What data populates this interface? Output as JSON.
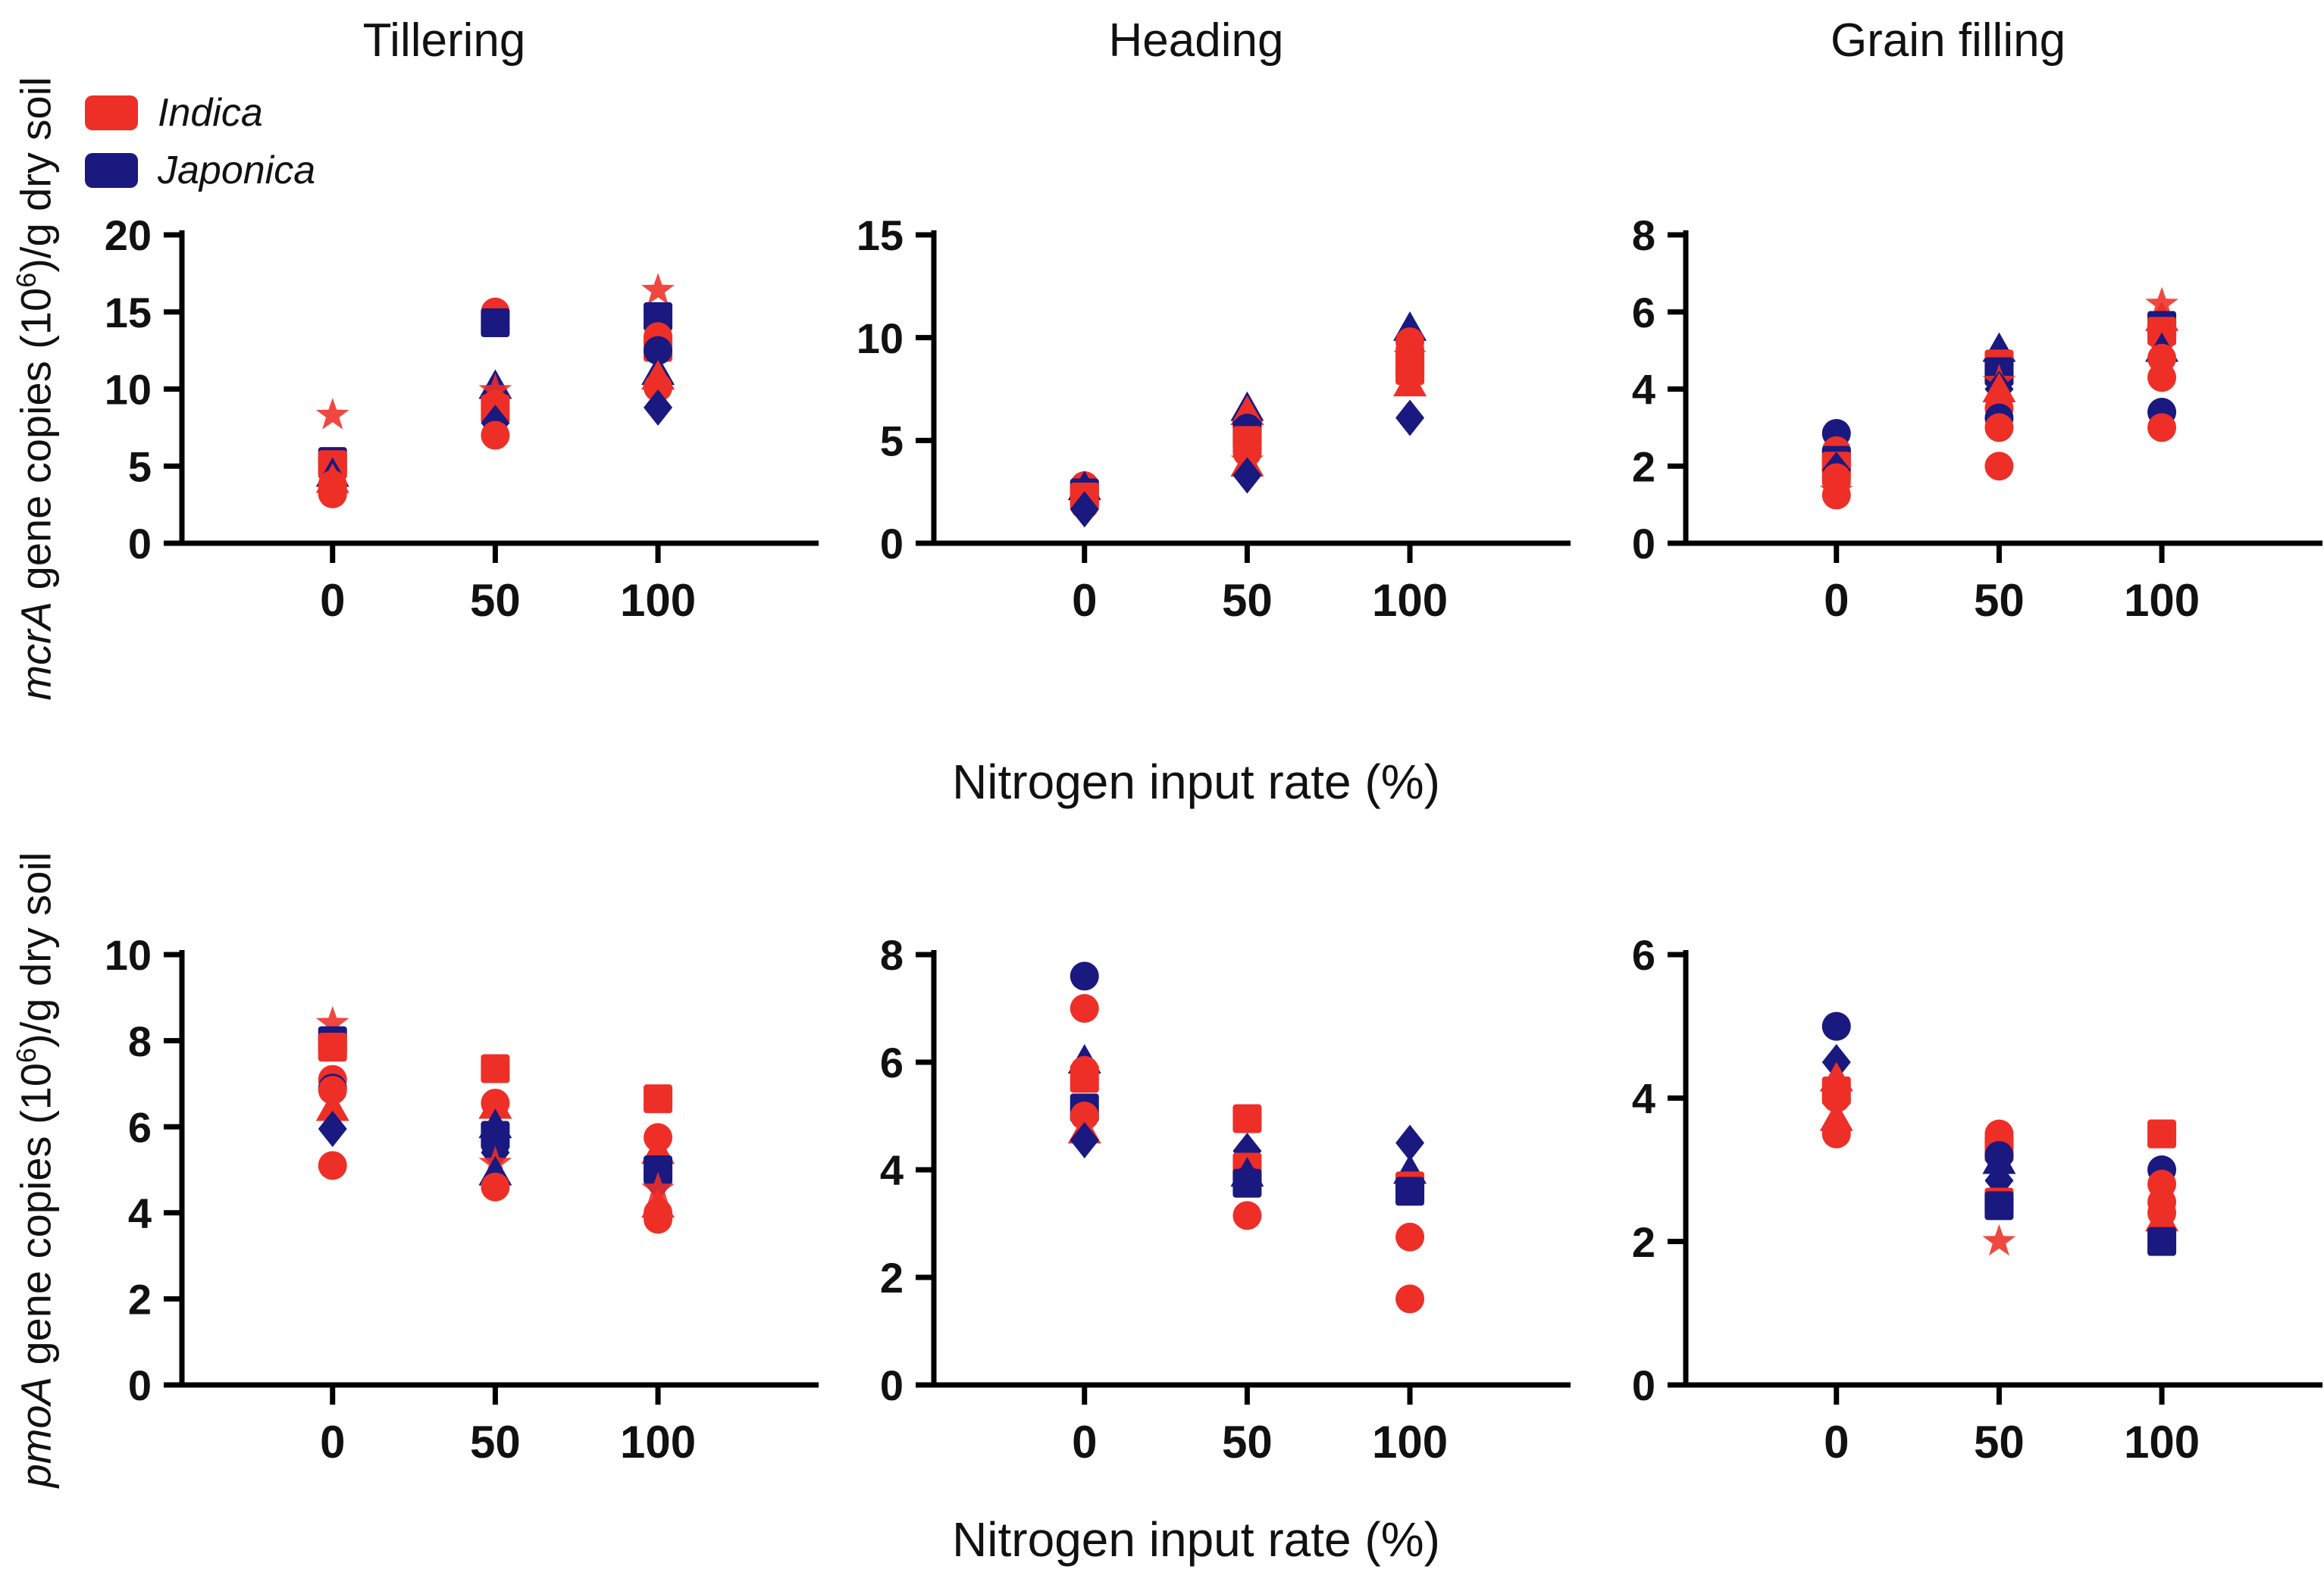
{
  "colors": {
    "indica": "#ee2f27",
    "japonica": "#191980",
    "axis": "#000000"
  },
  "legend": {
    "items": [
      {
        "label": "Indica",
        "color_key": "indica"
      },
      {
        "label": "Japonica",
        "color_key": "japonica"
      }
    ]
  },
  "col_titles": [
    "Tillering",
    "Heading",
    "Grain filling"
  ],
  "xlabel": "Nitrogen input rate (%)",
  "ylabels": {
    "row1": {
      "gene": "mcrA",
      "text_pre": " gene copies (10",
      "sup": "6",
      "text_post": ")/g dry soil"
    },
    "row2": {
      "gene": "pmoA",
      "text_pre": " gene copies (10",
      "sup": "6",
      "text_post": ")/g dry soil"
    }
  },
  "chart_data": [
    {
      "type": "scatter",
      "title": "Tillering",
      "gene": "mcrA",
      "xlabel": "Nitrogen input rate (%)",
      "xticks": [
        0,
        50,
        100
      ],
      "ylim": [
        0,
        20
      ],
      "yticks": [
        0,
        5,
        10,
        15,
        20
      ],
      "points": [
        {
          "x": 0,
          "y": 8.3,
          "m": "star",
          "v": "indica"
        },
        {
          "x": 0,
          "y": 5.3,
          "m": "square",
          "v": "japonica"
        },
        {
          "x": 0,
          "y": 5.1,
          "m": "square",
          "v": "indica"
        },
        {
          "x": 0,
          "y": 4.4,
          "m": "triangle",
          "v": "japonica"
        },
        {
          "x": 0,
          "y": 4.0,
          "m": "triangle",
          "v": "indica"
        },
        {
          "x": 0,
          "y": 3.8,
          "m": "circle",
          "v": "indica"
        },
        {
          "x": 0,
          "y": 3.5,
          "m": "circle",
          "v": "indica"
        },
        {
          "x": 0,
          "y": 3.2,
          "m": "circle",
          "v": "indica"
        },
        {
          "x": 50,
          "y": 15.0,
          "m": "circle",
          "v": "indica"
        },
        {
          "x": 50,
          "y": 14.3,
          "m": "square",
          "v": "japonica"
        },
        {
          "x": 50,
          "y": 10.1,
          "m": "triangle",
          "v": "japonica"
        },
        {
          "x": 50,
          "y": 9.9,
          "m": "star",
          "v": "indica"
        },
        {
          "x": 50,
          "y": 9.0,
          "m": "circle",
          "v": "indica"
        },
        {
          "x": 50,
          "y": 8.7,
          "m": "square",
          "v": "indica"
        },
        {
          "x": 50,
          "y": 8.4,
          "m": "circle",
          "v": "indica"
        },
        {
          "x": 50,
          "y": 7.8,
          "m": "diamond",
          "v": "japonica"
        },
        {
          "x": 50,
          "y": 7.0,
          "m": "circle",
          "v": "indica"
        },
        {
          "x": 100,
          "y": 16.4,
          "m": "star",
          "v": "indica"
        },
        {
          "x": 100,
          "y": 14.7,
          "m": "square",
          "v": "japonica"
        },
        {
          "x": 100,
          "y": 13.4,
          "m": "circle",
          "v": "indica"
        },
        {
          "x": 100,
          "y": 13.0,
          "m": "circle",
          "v": "indica"
        },
        {
          "x": 100,
          "y": 12.7,
          "m": "square",
          "v": "indica"
        },
        {
          "x": 100,
          "y": 12.5,
          "m": "circle",
          "v": "japonica"
        },
        {
          "x": 100,
          "y": 11.0,
          "m": "triangle",
          "v": "japonica"
        },
        {
          "x": 100,
          "y": 10.7,
          "m": "triangle",
          "v": "indica"
        },
        {
          "x": 100,
          "y": 10.1,
          "m": "circle",
          "v": "indica"
        },
        {
          "x": 100,
          "y": 8.8,
          "m": "diamond",
          "v": "japonica"
        }
      ]
    },
    {
      "type": "scatter",
      "title": "Heading",
      "gene": "mcrA",
      "xlabel": "Nitrogen input rate (%)",
      "xticks": [
        0,
        50,
        100
      ],
      "ylim": [
        0,
        15
      ],
      "yticks": [
        0,
        5,
        10,
        15
      ],
      "points": [
        {
          "x": 0,
          "y": 2.8,
          "m": "circle",
          "v": "indica"
        },
        {
          "x": 0,
          "y": 2.65,
          "m": "triangle",
          "v": "japonica"
        },
        {
          "x": 0,
          "y": 2.45,
          "m": "square",
          "v": "japonica"
        },
        {
          "x": 0,
          "y": 2.25,
          "m": "square",
          "v": "indica"
        },
        {
          "x": 0,
          "y": 2.0,
          "m": "circle",
          "v": "indica"
        },
        {
          "x": 0,
          "y": 1.85,
          "m": "circle",
          "v": "indica"
        },
        {
          "x": 0,
          "y": 1.65,
          "m": "diamond",
          "v": "japonica"
        },
        {
          "x": 50,
          "y": 6.5,
          "m": "triangle",
          "v": "japonica"
        },
        {
          "x": 50,
          "y": 6.3,
          "m": "triangle",
          "v": "indica"
        },
        {
          "x": 50,
          "y": 5.6,
          "m": "circle",
          "v": "japonica"
        },
        {
          "x": 50,
          "y": 5.3,
          "m": "square",
          "v": "japonica"
        },
        {
          "x": 50,
          "y": 5.0,
          "m": "square",
          "v": "indica"
        },
        {
          "x": 50,
          "y": 4.7,
          "m": "circle",
          "v": "indica"
        },
        {
          "x": 50,
          "y": 4.4,
          "m": "circle",
          "v": "indica"
        },
        {
          "x": 50,
          "y": 4.0,
          "m": "star",
          "v": "indica"
        },
        {
          "x": 50,
          "y": 3.8,
          "m": "triangle",
          "v": "indica"
        },
        {
          "x": 50,
          "y": 3.3,
          "m": "diamond",
          "v": "japonica"
        },
        {
          "x": 100,
          "y": 10.4,
          "m": "triangle",
          "v": "japonica"
        },
        {
          "x": 100,
          "y": 9.8,
          "m": "circle",
          "v": "indica"
        },
        {
          "x": 100,
          "y": 9.4,
          "m": "circle",
          "v": "indica"
        },
        {
          "x": 100,
          "y": 9.1,
          "m": "star",
          "v": "indica"
        },
        {
          "x": 100,
          "y": 8.7,
          "m": "square",
          "v": "indica"
        },
        {
          "x": 100,
          "y": 8.4,
          "m": "square",
          "v": "indica"
        },
        {
          "x": 100,
          "y": 7.7,
          "m": "triangle",
          "v": "indica"
        },
        {
          "x": 100,
          "y": 6.1,
          "m": "diamond",
          "v": "japonica"
        }
      ]
    },
    {
      "type": "scatter",
      "title": "Grain filling",
      "gene": "mcrA",
      "xlabel": "Nitrogen input rate (%)",
      "xticks": [
        0,
        50,
        100
      ],
      "ylim": [
        0,
        8
      ],
      "yticks": [
        0,
        2,
        4,
        6,
        8
      ],
      "points": [
        {
          "x": 0,
          "y": 2.85,
          "m": "circle",
          "v": "japonica"
        },
        {
          "x": 0,
          "y": 2.4,
          "m": "circle",
          "v": "indica"
        },
        {
          "x": 0,
          "y": 2.15,
          "m": "square",
          "v": "japonica"
        },
        {
          "x": 0,
          "y": 2.0,
          "m": "square",
          "v": "indica"
        },
        {
          "x": 0,
          "y": 1.9,
          "m": "diamond",
          "v": "japonica"
        },
        {
          "x": 0,
          "y": 1.7,
          "m": "circle",
          "v": "indica"
        },
        {
          "x": 0,
          "y": 1.6,
          "m": "circle",
          "v": "indica"
        },
        {
          "x": 0,
          "y": 1.35,
          "m": "star",
          "v": "indica"
        },
        {
          "x": 0,
          "y": 1.25,
          "m": "circle",
          "v": "indica"
        },
        {
          "x": 50,
          "y": 5.0,
          "m": "triangle",
          "v": "japonica"
        },
        {
          "x": 50,
          "y": 4.65,
          "m": "square",
          "v": "indica"
        },
        {
          "x": 50,
          "y": 4.45,
          "m": "square",
          "v": "japonica"
        },
        {
          "x": 50,
          "y": 4.2,
          "m": "star",
          "v": "indica"
        },
        {
          "x": 50,
          "y": 4.0,
          "m": "diamond",
          "v": "japonica"
        },
        {
          "x": 50,
          "y": 3.95,
          "m": "triangle",
          "v": "indica"
        },
        {
          "x": 50,
          "y": 3.5,
          "m": "circle",
          "v": "indica"
        },
        {
          "x": 50,
          "y": 3.25,
          "m": "circle",
          "v": "japonica"
        },
        {
          "x": 50,
          "y": 3.0,
          "m": "circle",
          "v": "indica"
        },
        {
          "x": 50,
          "y": 2.0,
          "m": "circle",
          "v": "indica"
        },
        {
          "x": 100,
          "y": 6.2,
          "m": "star",
          "v": "indica"
        },
        {
          "x": 100,
          "y": 5.8,
          "m": "triangle",
          "v": "indica"
        },
        {
          "x": 100,
          "y": 5.65,
          "m": "square",
          "v": "japonica"
        },
        {
          "x": 100,
          "y": 5.5,
          "m": "square",
          "v": "indica"
        },
        {
          "x": 100,
          "y": 5.35,
          "m": "circle",
          "v": "indica"
        },
        {
          "x": 100,
          "y": 5.0,
          "m": "triangle",
          "v": "japonica"
        },
        {
          "x": 100,
          "y": 4.8,
          "m": "circle",
          "v": "indica"
        },
        {
          "x": 100,
          "y": 4.3,
          "m": "circle",
          "v": "indica"
        },
        {
          "x": 100,
          "y": 3.4,
          "m": "circle",
          "v": "japonica"
        },
        {
          "x": 100,
          "y": 3.0,
          "m": "circle",
          "v": "indica"
        }
      ]
    },
    {
      "type": "scatter",
      "title": "Tillering",
      "gene": "pmoA",
      "xlabel": "Nitrogen input rate (%)",
      "xticks": [
        0,
        50,
        100
      ],
      "ylim": [
        0,
        10
      ],
      "yticks": [
        0,
        2,
        4,
        6,
        8,
        10
      ],
      "points": [
        {
          "x": 0,
          "y": 8.4,
          "m": "star",
          "v": "indica"
        },
        {
          "x": 0,
          "y": 8.0,
          "m": "square",
          "v": "japonica"
        },
        {
          "x": 0,
          "y": 7.85,
          "m": "square",
          "v": "indica"
        },
        {
          "x": 0,
          "y": 7.1,
          "m": "circle",
          "v": "indica"
        },
        {
          "x": 0,
          "y": 6.9,
          "m": "circle",
          "v": "japonica"
        },
        {
          "x": 0,
          "y": 6.85,
          "m": "circle",
          "v": "indica"
        },
        {
          "x": 0,
          "y": 6.4,
          "m": "triangle",
          "v": "indica"
        },
        {
          "x": 0,
          "y": 5.95,
          "m": "diamond",
          "v": "japonica"
        },
        {
          "x": 0,
          "y": 5.1,
          "m": "circle",
          "v": "indica"
        },
        {
          "x": 50,
          "y": 7.35,
          "m": "square",
          "v": "indica"
        },
        {
          "x": 50,
          "y": 6.55,
          "m": "circle",
          "v": "indica"
        },
        {
          "x": 50,
          "y": 6.45,
          "m": "triangle",
          "v": "indica"
        },
        {
          "x": 50,
          "y": 6.0,
          "m": "triangle",
          "v": "japonica"
        },
        {
          "x": 50,
          "y": 5.8,
          "m": "square",
          "v": "japonica"
        },
        {
          "x": 50,
          "y": 5.6,
          "m": "circle",
          "v": "japonica"
        },
        {
          "x": 50,
          "y": 5.4,
          "m": "diamond",
          "v": "japonica"
        },
        {
          "x": 50,
          "y": 5.15,
          "m": "star",
          "v": "indica"
        },
        {
          "x": 50,
          "y": 4.9,
          "m": "triangle",
          "v": "japonica"
        },
        {
          "x": 50,
          "y": 4.6,
          "m": "circle",
          "v": "indica"
        },
        {
          "x": 100,
          "y": 6.65,
          "m": "square",
          "v": "indica"
        },
        {
          "x": 100,
          "y": 5.75,
          "m": "circle",
          "v": "indica"
        },
        {
          "x": 100,
          "y": 5.4,
          "m": "triangle",
          "v": "indica"
        },
        {
          "x": 100,
          "y": 5.0,
          "m": "square",
          "v": "japonica"
        },
        {
          "x": 100,
          "y": 4.85,
          "m": "circle",
          "v": "japonica"
        },
        {
          "x": 100,
          "y": 4.7,
          "m": "diamond",
          "v": "japonica"
        },
        {
          "x": 100,
          "y": 4.55,
          "m": "star",
          "v": "indica"
        },
        {
          "x": 100,
          "y": 4.15,
          "m": "triangle",
          "v": "indica"
        },
        {
          "x": 100,
          "y": 4.0,
          "m": "circle",
          "v": "indica"
        },
        {
          "x": 100,
          "y": 3.85,
          "m": "circle",
          "v": "indica"
        }
      ]
    },
    {
      "type": "scatter",
      "title": "Heading",
      "gene": "pmoA",
      "xlabel": "Nitrogen input rate (%)",
      "xticks": [
        0,
        50,
        100
      ],
      "ylim": [
        0,
        8
      ],
      "yticks": [
        0,
        2,
        4,
        6,
        8
      ],
      "points": [
        {
          "x": 0,
          "y": 7.6,
          "m": "circle",
          "v": "japonica"
        },
        {
          "x": 0,
          "y": 7.0,
          "m": "circle",
          "v": "indica"
        },
        {
          "x": 0,
          "y": 6.0,
          "m": "triangle",
          "v": "japonica"
        },
        {
          "x": 0,
          "y": 5.85,
          "m": "circle",
          "v": "indica"
        },
        {
          "x": 0,
          "y": 5.7,
          "m": "square",
          "v": "indica"
        },
        {
          "x": 0,
          "y": 5.15,
          "m": "square",
          "v": "japonica"
        },
        {
          "x": 0,
          "y": 5.0,
          "m": "circle",
          "v": "indica"
        },
        {
          "x": 0,
          "y": 4.7,
          "m": "triangle",
          "v": "indica"
        },
        {
          "x": 0,
          "y": 4.55,
          "m": "diamond",
          "v": "japonica"
        },
        {
          "x": 50,
          "y": 4.95,
          "m": "square",
          "v": "indica"
        },
        {
          "x": 50,
          "y": 4.35,
          "m": "diamond",
          "v": "japonica"
        },
        {
          "x": 50,
          "y": 4.05,
          "m": "square",
          "v": "indica"
        },
        {
          "x": 50,
          "y": 3.9,
          "m": "triangle",
          "v": "japonica"
        },
        {
          "x": 50,
          "y": 3.8,
          "m": "circle",
          "v": "japonica"
        },
        {
          "x": 50,
          "y": 3.75,
          "m": "square",
          "v": "japonica"
        },
        {
          "x": 50,
          "y": 3.15,
          "m": "circle",
          "v": "indica"
        },
        {
          "x": 100,
          "y": 4.5,
          "m": "diamond",
          "v": "japonica"
        },
        {
          "x": 100,
          "y": 3.95,
          "m": "triangle",
          "v": "japonica"
        },
        {
          "x": 100,
          "y": 3.7,
          "m": "square",
          "v": "indica"
        },
        {
          "x": 100,
          "y": 3.6,
          "m": "square",
          "v": "japonica"
        },
        {
          "x": 100,
          "y": 2.75,
          "m": "circle",
          "v": "indica"
        },
        {
          "x": 100,
          "y": 1.6,
          "m": "circle",
          "v": "indica"
        }
      ]
    },
    {
      "type": "scatter",
      "title": "Grain filling",
      "gene": "pmoA",
      "xlabel": "Nitrogen input rate (%)",
      "xticks": [
        0,
        50,
        100
      ],
      "ylim": [
        0,
        6
      ],
      "yticks": [
        0,
        2,
        4,
        6
      ],
      "points": [
        {
          "x": 0,
          "y": 5.0,
          "m": "circle",
          "v": "japonica"
        },
        {
          "x": 0,
          "y": 4.5,
          "m": "diamond",
          "v": "japonica"
        },
        {
          "x": 0,
          "y": 4.25,
          "m": "triangle",
          "v": "indica"
        },
        {
          "x": 0,
          "y": 4.1,
          "m": "square",
          "v": "indica"
        },
        {
          "x": 0,
          "y": 4.0,
          "m": "circle",
          "v": "indica"
        },
        {
          "x": 0,
          "y": 3.7,
          "m": "triangle",
          "v": "indica"
        },
        {
          "x": 0,
          "y": 3.5,
          "m": "circle",
          "v": "indica"
        },
        {
          "x": 50,
          "y": 3.5,
          "m": "circle",
          "v": "indica"
        },
        {
          "x": 50,
          "y": 3.4,
          "m": "circle",
          "v": "indica"
        },
        {
          "x": 50,
          "y": 3.3,
          "m": "square",
          "v": "indica"
        },
        {
          "x": 50,
          "y": 3.2,
          "m": "circle",
          "v": "japonica"
        },
        {
          "x": 50,
          "y": 3.1,
          "m": "triangle",
          "v": "japonica"
        },
        {
          "x": 50,
          "y": 2.85,
          "m": "diamond",
          "v": "japonica"
        },
        {
          "x": 50,
          "y": 2.55,
          "m": "square",
          "v": "indica"
        },
        {
          "x": 50,
          "y": 2.5,
          "m": "square",
          "v": "japonica"
        },
        {
          "x": 50,
          "y": 2.0,
          "m": "star",
          "v": "indica"
        },
        {
          "x": 100,
          "y": 3.5,
          "m": "square",
          "v": "indica"
        },
        {
          "x": 100,
          "y": 3.0,
          "m": "circle",
          "v": "japonica"
        },
        {
          "x": 100,
          "y": 2.8,
          "m": "circle",
          "v": "indica"
        },
        {
          "x": 100,
          "y": 2.55,
          "m": "circle",
          "v": "indica"
        },
        {
          "x": 100,
          "y": 2.4,
          "m": "circle",
          "v": "indica"
        },
        {
          "x": 100,
          "y": 2.3,
          "m": "triangle",
          "v": "indica"
        },
        {
          "x": 100,
          "y": 2.0,
          "m": "square",
          "v": "japonica"
        }
      ]
    }
  ]
}
